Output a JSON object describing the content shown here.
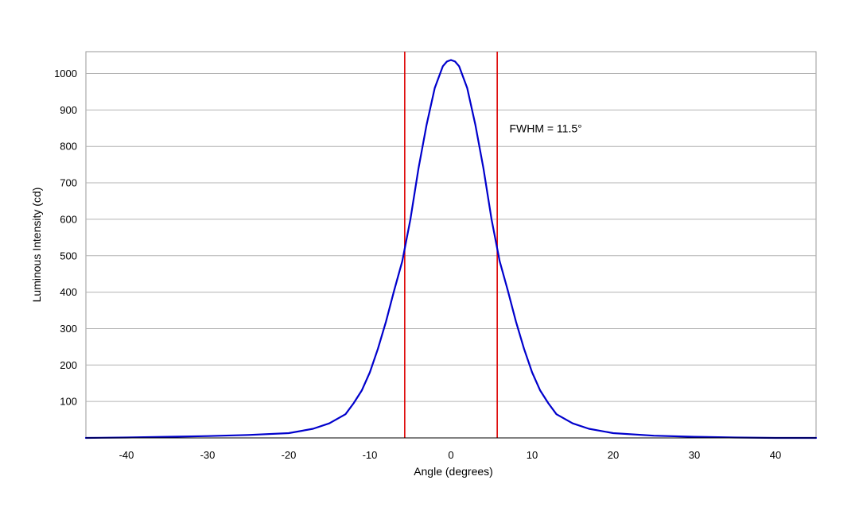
{
  "chart_data": {
    "type": "line",
    "title": "",
    "xlabel": "Angle (degrees)",
    "ylabel": "Luminous Intensity (cd)",
    "xlim": [
      -45,
      45
    ],
    "ylim": [
      0,
      1060
    ],
    "x_ticks": [
      -40,
      -30,
      -20,
      -10,
      0,
      10,
      20,
      30,
      40
    ],
    "x_tick_labels": [
      "-40",
      "-30",
      "-20",
      "-10",
      "0",
      "10",
      "20",
      "30",
      "40"
    ],
    "y_ticks": [
      100,
      200,
      300,
      400,
      500,
      600,
      700,
      800,
      900,
      1000
    ],
    "y_tick_labels": [
      "100",
      "200",
      "300",
      "400",
      "500",
      "600",
      "700",
      "800",
      "900",
      "1000"
    ],
    "grid": "horizontal",
    "legend": "none",
    "series": [
      {
        "color": "#0000cc",
        "x": [
          -45,
          -40,
          -35,
          -30,
          -25,
          -20,
          -17,
          -15,
          -13,
          -12,
          -11,
          -10,
          -9,
          -8,
          -7,
          -6,
          -5.7,
          -5,
          -4,
          -3,
          -2,
          -1,
          -0.5,
          0,
          0.5,
          1,
          2,
          3,
          4,
          5,
          5.7,
          6,
          7,
          8,
          9,
          10,
          11,
          12,
          13,
          15,
          17,
          20,
          25,
          30,
          35,
          40,
          45
        ],
        "y": [
          0,
          1,
          3,
          5,
          8,
          13,
          25,
          40,
          65,
          95,
          130,
          180,
          245,
          320,
          405,
          485,
          520,
          600,
          740,
          860,
          960,
          1020,
          1033,
          1037,
          1033,
          1020,
          960,
          860,
          740,
          600,
          520,
          485,
          405,
          320,
          245,
          180,
          130,
          95,
          65,
          40,
          25,
          13,
          6,
          3,
          1,
          0,
          0
        ]
      }
    ],
    "reference_lines": [
      {
        "axis": "x",
        "value": -5.7,
        "color": "#dd0000"
      },
      {
        "axis": "x",
        "value": 5.7,
        "color": "#dd0000"
      }
    ],
    "annotations": [
      {
        "text": "FWHM = 11.5°",
        "x": 7.2,
        "y": 850
      }
    ]
  }
}
